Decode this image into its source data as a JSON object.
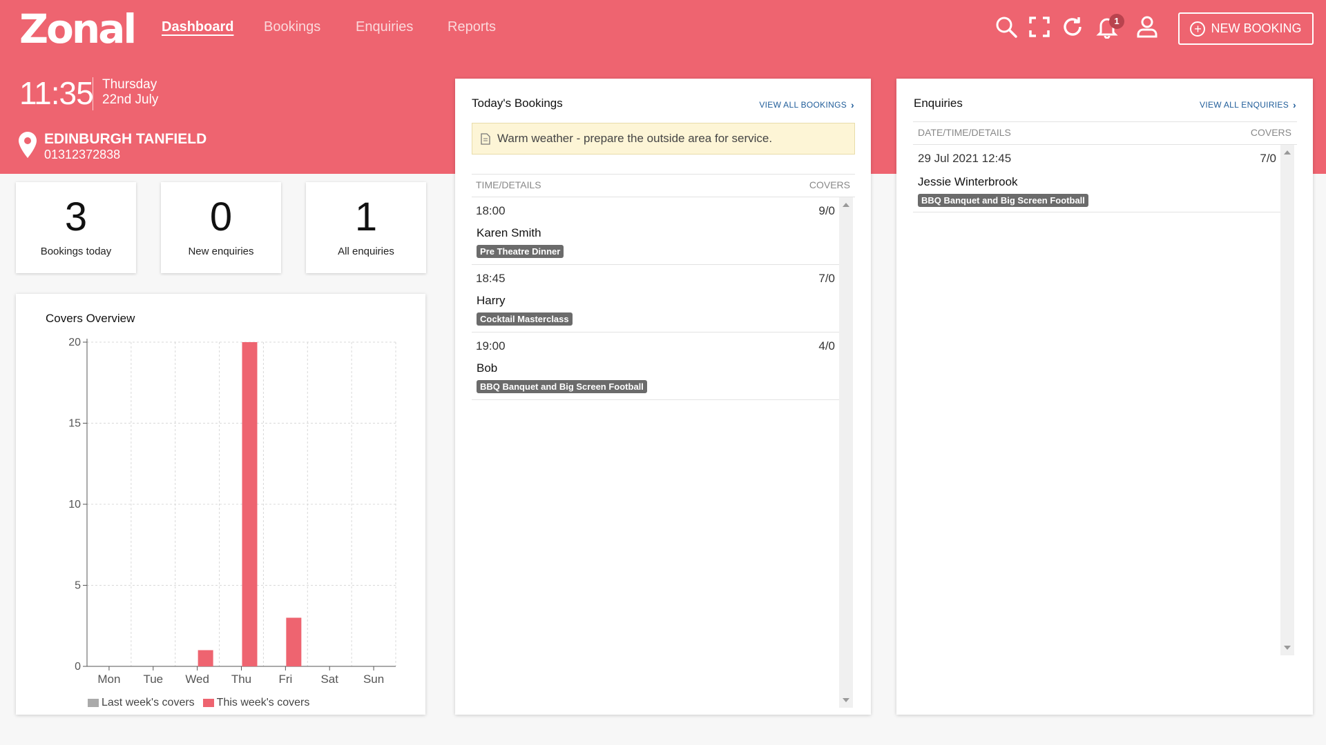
{
  "app": {
    "logo": "Zonal",
    "nav": [
      {
        "label": "Dashboard",
        "active": true
      },
      {
        "label": "Bookings",
        "active": false
      },
      {
        "label": "Enquiries",
        "active": false
      },
      {
        "label": "Reports",
        "active": false
      }
    ],
    "notification_count": "1",
    "new_booking_label": "NEW BOOKING",
    "icons": [
      "search-icon",
      "fullscreen-icon",
      "refresh-icon",
      "bell-icon",
      "user-icon"
    ],
    "accent_color": "#ee6470"
  },
  "header": {
    "time": "11:35",
    "day": "Thursday",
    "date": "22nd July",
    "venue": "EDINBURGH TANFIELD",
    "phone": "01312372838"
  },
  "stats": [
    {
      "value": "3",
      "label": "Bookings today"
    },
    {
      "value": "0",
      "label": "New enquiries"
    },
    {
      "value": "1",
      "label": "All enquiries"
    }
  ],
  "covers_overview": {
    "title": "Covers Overview"
  },
  "chart_data": {
    "type": "bar",
    "title": "Covers Overview",
    "categories": [
      "Mon",
      "Tue",
      "Wed",
      "Thu",
      "Fri",
      "Sat",
      "Sun"
    ],
    "series": [
      {
        "name": "Last week's covers",
        "values": [
          0,
          0,
          0,
          0,
          0,
          0,
          0
        ],
        "color": "#aaaaaa"
      },
      {
        "name": "This week's covers",
        "values": [
          0,
          0,
          1,
          20,
          3,
          0,
          0
        ],
        "color": "#ee6470"
      }
    ],
    "ylim": [
      0,
      20
    ],
    "yticks": [
      0,
      5,
      10,
      15,
      20
    ],
    "grid": true,
    "legend": "bottom"
  },
  "todays_bookings": {
    "title": "Today's Bookings",
    "view_all": "VIEW ALL BOOKINGS",
    "note": "Warm weather - prepare the outside area for service.",
    "col_time": "TIME/DETAILS",
    "col_covers": "COVERS",
    "rows": [
      {
        "time": "18:00",
        "covers": "9/0",
        "name": "Karen Smith",
        "tag": "Pre Theatre Dinner"
      },
      {
        "time": "18:45",
        "covers": "7/0",
        "name": "Harry",
        "tag": "Cocktail Masterclass"
      },
      {
        "time": "19:00",
        "covers": "4/0",
        "name": "Bob",
        "tag": "BBQ Banquet and Big Screen Football"
      }
    ]
  },
  "enquiries": {
    "title": "Enquiries",
    "view_all": "VIEW ALL ENQUIRIES",
    "col_date": "DATE/TIME/DETAILS",
    "col_covers": "COVERS",
    "rows": [
      {
        "datetime": "29 Jul 2021 12:45",
        "covers": "7/0",
        "name": "Jessie Winterbrook",
        "tag": "BBQ Banquet and Big Screen Football"
      }
    ]
  }
}
